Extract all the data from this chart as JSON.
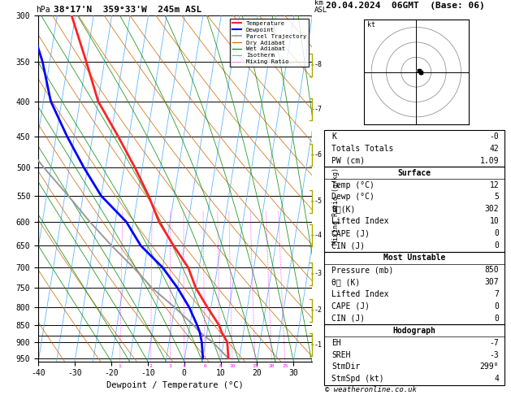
{
  "title_left": "38°17'N  359°33'W  245m ASL",
  "title_right": "20.04.2024  06GMT  (Base: 06)",
  "xlabel": "Dewpoint / Temperature (°C)",
  "pressure_levels": [
    300,
    350,
    400,
    450,
    500,
    550,
    600,
    650,
    700,
    750,
    800,
    850,
    900,
    950
  ],
  "temp_ticks": [
    -40,
    -30,
    -20,
    -10,
    0,
    10,
    20,
    30
  ],
  "isotherm_temps": [
    -50,
    -45,
    -40,
    -35,
    -30,
    -25,
    -20,
    -15,
    -10,
    -5,
    0,
    5,
    10,
    15,
    20,
    25,
    30,
    35,
    40
  ],
  "mixing_ratio_values": [
    1,
    2,
    3,
    4,
    6,
    8,
    10,
    15,
    20,
    25
  ],
  "temp_profile_p": [
    950,
    900,
    870,
    850,
    800,
    750,
    700,
    650,
    600,
    550,
    500,
    450,
    400,
    350,
    300
  ],
  "temp_profile_t": [
    12,
    11,
    9,
    8,
    4,
    0,
    -3,
    -8,
    -13,
    -17,
    -22,
    -28,
    -35,
    -40,
    -46
  ],
  "dewp_profile_p": [
    950,
    900,
    870,
    850,
    800,
    750,
    700,
    650,
    600,
    550,
    500,
    450,
    400,
    350,
    300
  ],
  "dewp_profile_t": [
    5,
    4,
    3,
    2,
    -1,
    -5,
    -10,
    -17,
    -22,
    -30,
    -36,
    -42,
    -48,
    -52,
    -58
  ],
  "parcel_profile_p": [
    950,
    900,
    870,
    850,
    800,
    750,
    700,
    650,
    600,
    550,
    500,
    450,
    400,
    350,
    300
  ],
  "parcel_profile_t": [
    12,
    7,
    3,
    1,
    -5,
    -12,
    -18,
    -25,
    -32,
    -39,
    -47,
    -55,
    -63,
    -72,
    -81
  ],
  "lcl_pressure": 880,
  "p_min": 300,
  "p_max": 960,
  "t_min": -40,
  "t_max": 35,
  "skew_factor": 30,
  "colors": {
    "temperature": "#ff2222",
    "dewpoint": "#0000ff",
    "parcel": "#999999",
    "dry_adiabat": "#cc6600",
    "wet_adiabat": "#008800",
    "isotherm": "#44aaff",
    "mixing_ratio": "#ff00ff",
    "background": "#ffffff",
    "grid": "#000000"
  },
  "km_ticks": {
    "8": 354,
    "7": 411,
    "6": 479,
    "5": 560,
    "4": 628,
    "3": 715,
    "2": 808,
    "1": 908
  },
  "info_panel": {
    "K": "-0",
    "Totals Totals": "42",
    "PW (cm)": "1.09",
    "surface_temp": "12",
    "surface_dewp": "5",
    "surface_theta_e": "302",
    "surface_lifted_index": "10",
    "surface_cape": "0",
    "surface_cin": "0",
    "mu_pressure": "850",
    "mu_theta_e": "307",
    "mu_lifted_index": "7",
    "mu_cape": "0",
    "mu_cin": "0",
    "EH": "-7",
    "SREH": "-3",
    "StmDir": "299°",
    "StmSpd": "4"
  },
  "hodograph": {
    "wind_u": [
      2,
      1,
      0,
      2
    ],
    "wind_v": [
      1,
      0,
      1,
      2
    ]
  },
  "legend_items": [
    {
      "label": "Temperature",
      "color": "#ff2222",
      "lw": 1.5,
      "ls": "-"
    },
    {
      "label": "Dewpoint",
      "color": "#0000ff",
      "lw": 1.5,
      "ls": "-"
    },
    {
      "label": "Parcel Trajectory",
      "color": "#999999",
      "lw": 1.2,
      "ls": "-"
    },
    {
      "label": "Dry Adiabat",
      "color": "#cc6600",
      "lw": 0.8,
      "ls": "-"
    },
    {
      "label": "Wet Adiabat",
      "color": "#008800",
      "lw": 0.8,
      "ls": "-"
    },
    {
      "label": "Isotherm",
      "color": "#44aaff",
      "lw": 0.7,
      "ls": "-"
    },
    {
      "label": "Mixing Ratio",
      "color": "#ff00ff",
      "lw": 0.6,
      "ls": ":"
    }
  ]
}
